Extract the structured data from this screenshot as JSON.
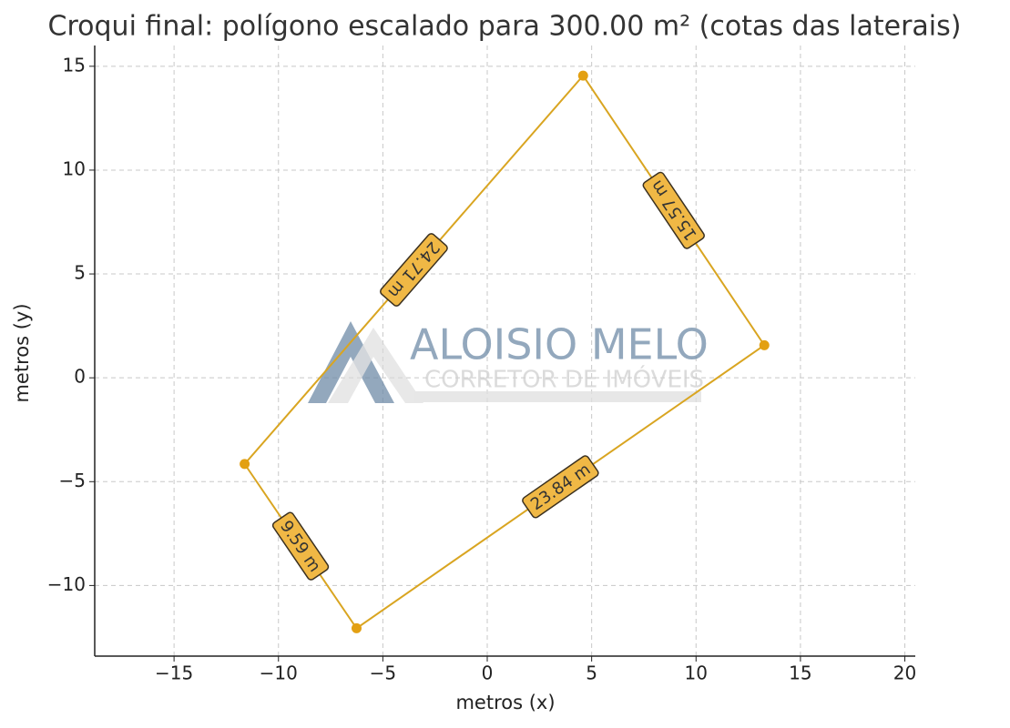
{
  "chart_data": {
    "type": "polygon",
    "title": "Croqui final: polígono escalado para 300.00 m² (cotas das laterais)",
    "xlabel": "metros (x)",
    "ylabel": "metros (y)",
    "x": [
      4.59,
      13.27,
      -6.26,
      -11.62
    ],
    "y": [
      14.55,
      1.57,
      -12.06,
      -4.15
    ],
    "color": "#d9a521",
    "point_color": "#e3a012",
    "label_fill": "#f0b845",
    "edge_lengths": {
      "values": [
        15.57,
        23.84,
        9.59,
        24.71
      ],
      "value_labels": [
        "15.57 m",
        "23.84 m",
        "9.59 m",
        "24.71 m"
      ]
    },
    "xlim": [
      -18.8,
      20.5
    ],
    "ylim": [
      -13.4,
      16
    ],
    "xticks": [
      {
        "value": -15,
        "label": "−15"
      },
      {
        "value": -10,
        "label": "−10"
      },
      {
        "value": -5,
        "label": "−5"
      },
      0,
      5,
      10,
      15,
      20
    ],
    "yticks": [
      {
        "value": -10,
        "label": "−10"
      },
      {
        "value": -5,
        "label": "−5"
      },
      0,
      5,
      10,
      15
    ],
    "grid": true,
    "watermark": {
      "title": "ALOISIO MELO",
      "subtitle": "CORRETOR DE IMÓVEIS"
    }
  }
}
